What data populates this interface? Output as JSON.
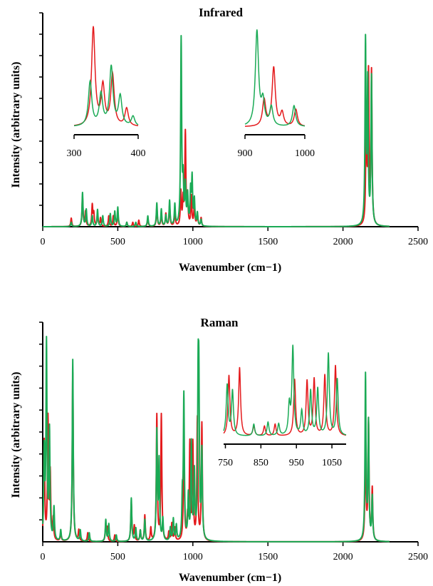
{
  "figure": {
    "colors": {
      "series_a": "#e41a1c",
      "series_b": "#1aaa55",
      "axis": "#000000"
    }
  },
  "chart_data": [
    {
      "id": "infrared",
      "type": "line",
      "title": "Infrared",
      "xlabel": "Wavenumber (cm−1)",
      "ylabel": "Intensity (arbitrary units)",
      "xlim": [
        0,
        2500
      ],
      "ylim": [
        0,
        1
      ],
      "x_ticks": [
        0,
        500,
        1000,
        1500,
        2000,
        2500
      ],
      "y_ticks_labeled": false,
      "grid": false,
      "line_shape": "lorentzian",
      "line_width_cm": 4,
      "series": [
        {
          "color": "#e41a1c",
          "peaks": [
            [
              190,
              0.04
            ],
            [
              265,
              0.14
            ],
            [
              285,
              0.07
            ],
            [
              330,
              0.1
            ],
            [
              340,
              0.06
            ],
            [
              365,
              0.06
            ],
            [
              385,
              0.04
            ],
            [
              440,
              0.05
            ],
            [
              470,
              0.05
            ],
            [
              500,
              0.07
            ],
            [
              560,
              0.02
            ],
            [
              600,
              0.02
            ],
            [
              640,
              0.03
            ],
            [
              700,
              0.04
            ],
            [
              760,
              0.09
            ],
            [
              790,
              0.06
            ],
            [
              820,
              0.06
            ],
            [
              845,
              0.1
            ],
            [
              880,
              0.07
            ],
            [
              920,
              0.16
            ],
            [
              935,
              0.12
            ],
            [
              950,
              0.44
            ],
            [
              965,
              0.12
            ],
            [
              990,
              0.14
            ],
            [
              1010,
              0.1
            ],
            [
              1030,
              0.06
            ],
            [
              1055,
              0.04
            ],
            [
              2155,
              0.53
            ],
            [
              2170,
              0.7
            ],
            [
              2190,
              0.72
            ]
          ]
        },
        {
          "color": "#1aaa55",
          "peaks": [
            [
              190,
              0.02
            ],
            [
              265,
              0.16
            ],
            [
              290,
              0.08
            ],
            [
              330,
              0.05
            ],
            [
              365,
              0.08
            ],
            [
              400,
              0.05
            ],
            [
              450,
              0.06
            ],
            [
              480,
              0.07
            ],
            [
              500,
              0.09
            ],
            [
              560,
              0.02
            ],
            [
              620,
              0.02
            ],
            [
              700,
              0.05
            ],
            [
              760,
              0.11
            ],
            [
              790,
              0.08
            ],
            [
              820,
              0.05
            ],
            [
              845,
              0.12
            ],
            [
              880,
              0.1
            ],
            [
              922,
              0.88
            ],
            [
              935,
              0.2
            ],
            [
              950,
              0.18
            ],
            [
              965,
              0.14
            ],
            [
              985,
              0.16
            ],
            [
              995,
              0.22
            ],
            [
              1010,
              0.12
            ],
            [
              1030,
              0.06
            ],
            [
              1055,
              0.03
            ],
            [
              2150,
              0.86
            ],
            [
              2165,
              0.66
            ],
            [
              2190,
              0.7
            ]
          ]
        }
      ],
      "insets": [
        {
          "xlim": [
            300,
            400
          ],
          "x_ticks": [
            300,
            400
          ],
          "series": [
            {
              "color": "#e41a1c",
              "peaks": [
                [
                  330,
                  1.0
                ],
                [
                  345,
                  0.4
                ],
                [
                  360,
                  0.52
                ],
                [
                  382,
                  0.18
                ]
              ]
            },
            {
              "color": "#1aaa55",
              "peaks": [
                [
                  325,
                  0.45
                ],
                [
                  342,
                  0.32
                ],
                [
                  358,
                  0.6
                ],
                [
                  372,
                  0.3
                ],
                [
                  392,
                  0.1
                ]
              ]
            }
          ]
        },
        {
          "xlim": [
            900,
            1000
          ],
          "x_ticks": [
            900,
            1000
          ],
          "series": [
            {
              "color": "#e41a1c",
              "peaks": [
                [
                  932,
                  0.28
                ],
                [
                  948,
                  0.62
                ],
                [
                  962,
                  0.14
                ],
                [
                  985,
                  0.18
                ]
              ]
            },
            {
              "color": "#1aaa55",
              "peaks": [
                [
                  920,
                  1.0
                ],
                [
                  930,
                  0.25
                ],
                [
                  944,
                  0.2
                ],
                [
                  982,
                  0.22
                ]
              ]
            }
          ]
        }
      ]
    },
    {
      "id": "raman",
      "type": "line",
      "title": "Raman",
      "xlabel": "Wavenumber (cm−1)",
      "ylabel": "Intensity (arbitrary units)",
      "xlim": [
        0,
        2500
      ],
      "ylim": [
        0,
        1
      ],
      "x_ticks": [
        0,
        500,
        1000,
        1500,
        2000,
        2500
      ],
      "y_ticks_labeled": false,
      "grid": false,
      "line_shape": "lorentzian",
      "line_width_cm": 4,
      "series": [
        {
          "color": "#e41a1c",
          "peaks": [
            [
              10,
              0.46
            ],
            [
              35,
              0.56
            ],
            [
              50,
              0.3
            ],
            [
              70,
              0.1
            ],
            [
              120,
              0.04
            ],
            [
              200,
              0.78
            ],
            [
              240,
              0.05
            ],
            [
              300,
              0.04
            ],
            [
              420,
              0.08
            ],
            [
              430,
              0.06
            ],
            [
              480,
              0.03
            ],
            [
              590,
              0.18
            ],
            [
              610,
              0.07
            ],
            [
              650,
              0.05
            ],
            [
              680,
              0.12
            ],
            [
              720,
              0.06
            ],
            [
              760,
              0.58
            ],
            [
              790,
              0.58
            ],
            [
              840,
              0.04
            ],
            [
              860,
              0.08
            ],
            [
              880,
              0.06
            ],
            [
              940,
              0.48
            ],
            [
              965,
              0.1
            ],
            [
              980,
              0.44
            ],
            [
              1000,
              0.44
            ],
            [
              1030,
              0.56
            ],
            [
              1060,
              0.54
            ],
            [
              2150,
              0.48
            ],
            [
              2170,
              0.55
            ],
            [
              2195,
              0.24
            ]
          ]
        },
        {
          "color": "#1aaa55",
          "peaks": [
            [
              10,
              0.4
            ],
            [
              25,
              0.9
            ],
            [
              45,
              0.5
            ],
            [
              75,
              0.15
            ],
            [
              120,
              0.05
            ],
            [
              200,
              0.84
            ],
            [
              250,
              0.05
            ],
            [
              310,
              0.04
            ],
            [
              420,
              0.1
            ],
            [
              440,
              0.08
            ],
            [
              490,
              0.03
            ],
            [
              590,
              0.2
            ],
            [
              620,
              0.06
            ],
            [
              650,
              0.05
            ],
            [
              680,
              0.1
            ],
            [
              760,
              0.5
            ],
            [
              775,
              0.36
            ],
            [
              800,
              0.1
            ],
            [
              850,
              0.06
            ],
            [
              870,
              0.1
            ],
            [
              890,
              0.07
            ],
            [
              930,
              0.18
            ],
            [
              940,
              0.66
            ],
            [
              970,
              0.2
            ],
            [
              990,
              0.44
            ],
            [
              1010,
              0.3
            ],
            [
              1035,
              0.64
            ],
            [
              1040,
              0.62
            ],
            [
              1060,
              0.4
            ],
            [
              2150,
              0.76
            ],
            [
              2170,
              0.54
            ],
            [
              2195,
              0.2
            ]
          ]
        }
      ],
      "insets": [
        {
          "xlim": [
            745,
            1090
          ],
          "x_ticks": [
            750,
            850,
            950,
            1050
          ],
          "series": [
            {
              "color": "#e41a1c",
              "peaks": [
                [
                  760,
                  0.62
                ],
                [
                  790,
                  0.7
                ],
                [
                  830,
                  0.1
                ],
                [
                  860,
                  0.1
                ],
                [
                  890,
                  0.12
                ],
                [
                  945,
                  0.58
                ],
                [
                  980,
                  0.56
                ],
                [
                  1000,
                  0.58
                ],
                [
                  1030,
                  0.62
                ],
                [
                  1060,
                  0.72
                ]
              ]
            },
            {
              "color": "#1aaa55",
              "peaks": [
                [
                  755,
                  0.52
                ],
                [
                  770,
                  0.46
                ],
                [
                  830,
                  0.12
                ],
                [
                  870,
                  0.14
                ],
                [
                  900,
                  0.12
                ],
                [
                  930,
                  0.3
                ],
                [
                  940,
                  0.9
                ],
                [
                  965,
                  0.25
                ],
                [
                  990,
                  0.46
                ],
                [
                  1010,
                  0.48
                ],
                [
                  1040,
                  0.84
                ],
                [
                  1065,
                  0.58
                ]
              ]
            }
          ]
        }
      ]
    }
  ]
}
